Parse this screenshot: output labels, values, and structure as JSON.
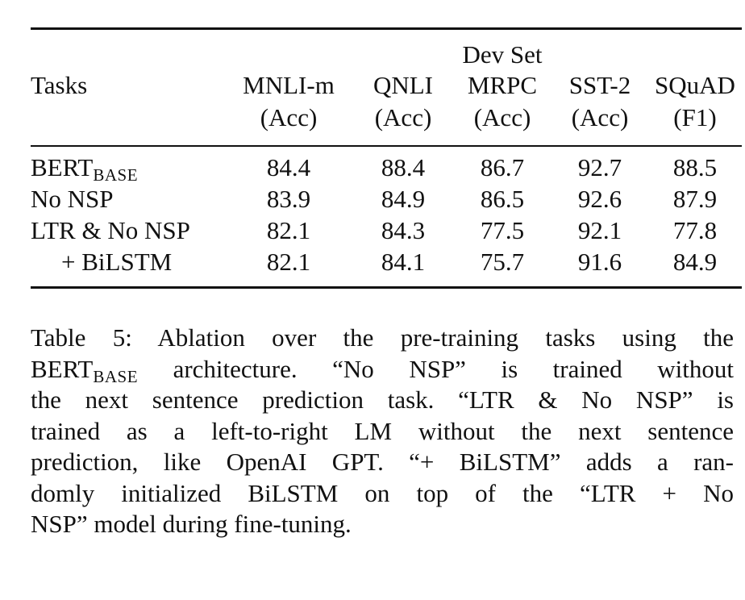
{
  "table": {
    "group_header": "Dev Set",
    "tasks_header": "Tasks",
    "columns": [
      {
        "name": "MNLI-m",
        "metric": "(Acc)"
      },
      {
        "name": "QNLI",
        "metric": "(Acc)"
      },
      {
        "name": "MRPC",
        "metric": "(Acc)"
      },
      {
        "name": "SST-2",
        "metric": "(Acc)"
      },
      {
        "name": "SQuAD",
        "metric": "(F1)"
      }
    ],
    "rows": [
      {
        "task": "BERT",
        "task_sub": "BASE",
        "values": [
          "84.4",
          "88.4",
          "86.7",
          "92.7",
          "88.5"
        ]
      },
      {
        "task": "No NSP",
        "task_sub": "",
        "values": [
          "83.9",
          "84.9",
          "86.5",
          "92.6",
          "87.9"
        ]
      },
      {
        "task": "LTR & No NSP",
        "task_sub": "",
        "values": [
          "82.1",
          "84.3",
          "77.5",
          "92.1",
          "77.8"
        ]
      },
      {
        "task": "+ BiLSTM",
        "task_sub": "",
        "values": [
          "82.1",
          "84.1",
          "75.7",
          "91.6",
          "84.9"
        ]
      }
    ]
  },
  "caption": {
    "line1": "Table 5: Ablation over the pre-training tasks using the",
    "line2_a": "BERT",
    "line2_sub": "BASE",
    "line2_b": " architecture. “No NSP” is trained without",
    "line3": "the next sentence prediction task. “LTR & No NSP” is",
    "line4": "trained as a left-to-right LM without the next sentence",
    "line5": "prediction, like OpenAI GPT. “+ BiLSTM” adds a ran-",
    "line6": "domly initialized BiLSTM on top of the “LTR + No",
    "line7": "NSP” model during fine-tuning."
  }
}
